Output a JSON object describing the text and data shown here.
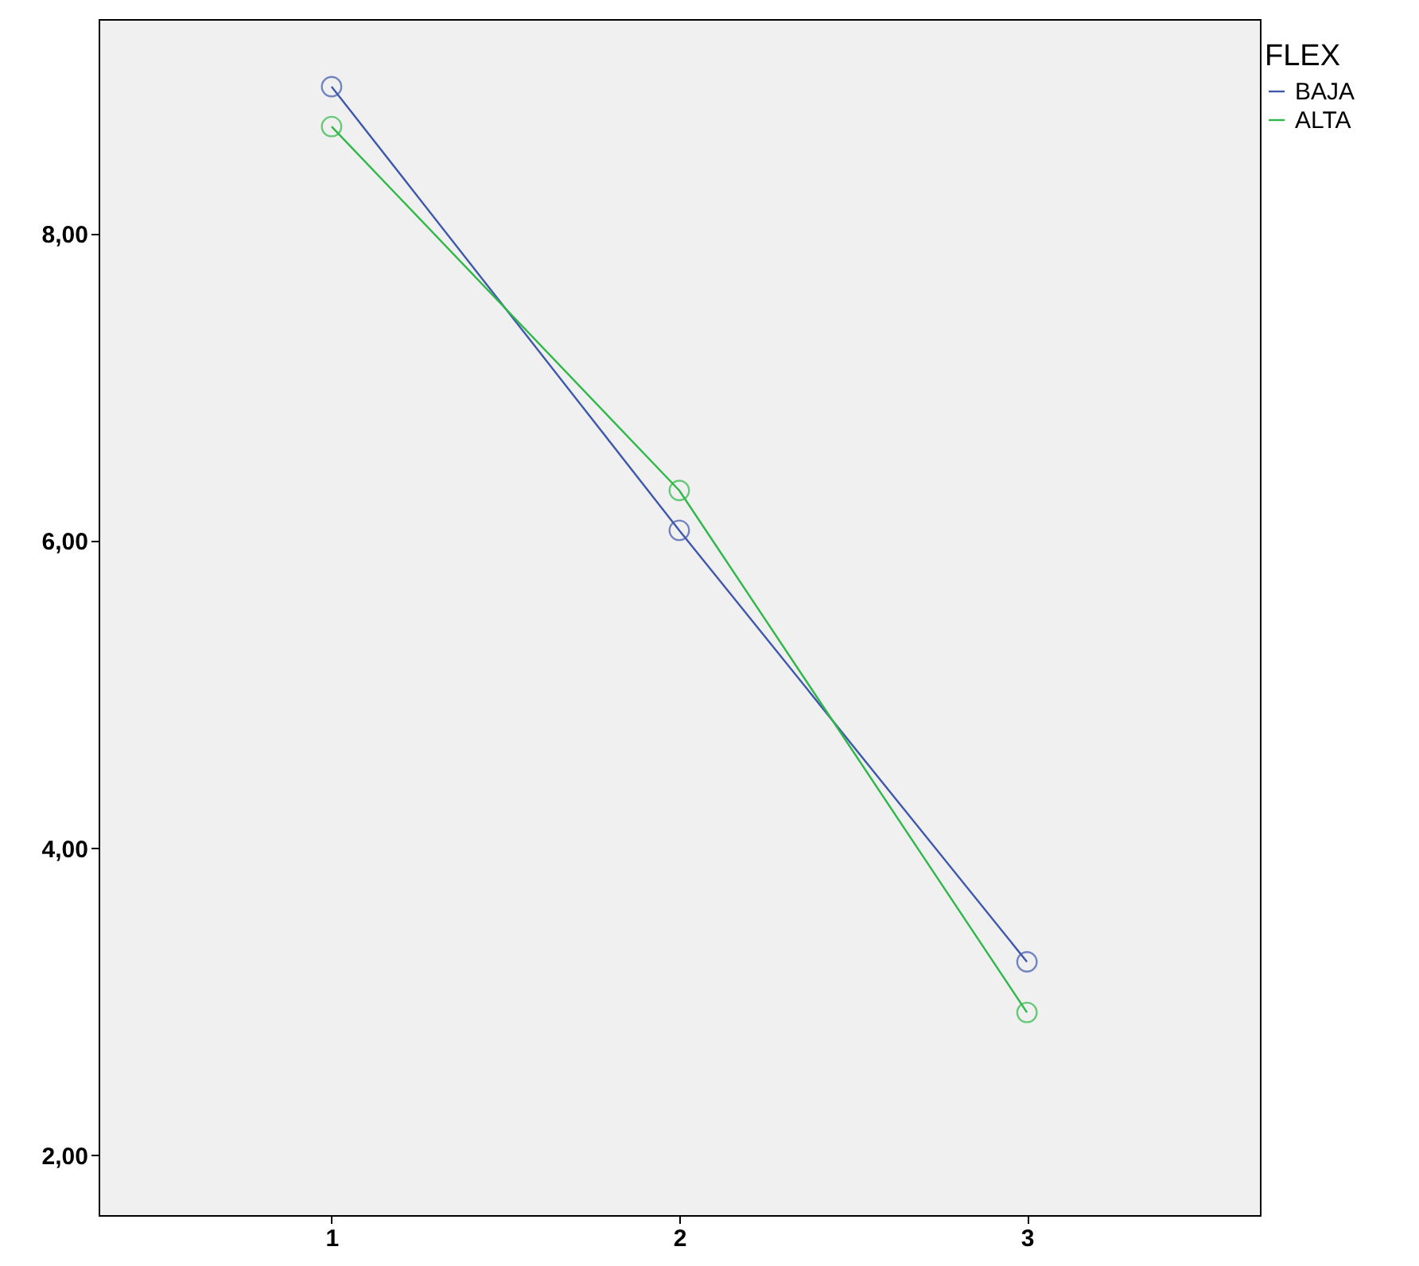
{
  "chart_data": {
    "type": "line",
    "x": [
      1,
      2,
      3
    ],
    "xlim": [
      0.33,
      3.67
    ],
    "xticks": [
      1,
      2,
      3
    ],
    "ylim": [
      1.61,
      9.4
    ],
    "yticks": [
      {
        "value": 2,
        "label": "2,00"
      },
      {
        "value": 4,
        "label": "4,00"
      },
      {
        "value": 6,
        "label": "6,00"
      },
      {
        "value": 8,
        "label": "8,00"
      }
    ],
    "legend_title": "FLEX",
    "legend": "top right",
    "marker": "circle",
    "line_style": "solid",
    "grid": false,
    "series": [
      {
        "name": "BAJA",
        "color": "#3e58ac",
        "values": [
          8.96,
          6.07,
          3.26
        ]
      },
      {
        "name": "ALTA",
        "color": "#2eb848",
        "values": [
          8.7,
          6.33,
          2.93
        ]
      }
    ]
  }
}
